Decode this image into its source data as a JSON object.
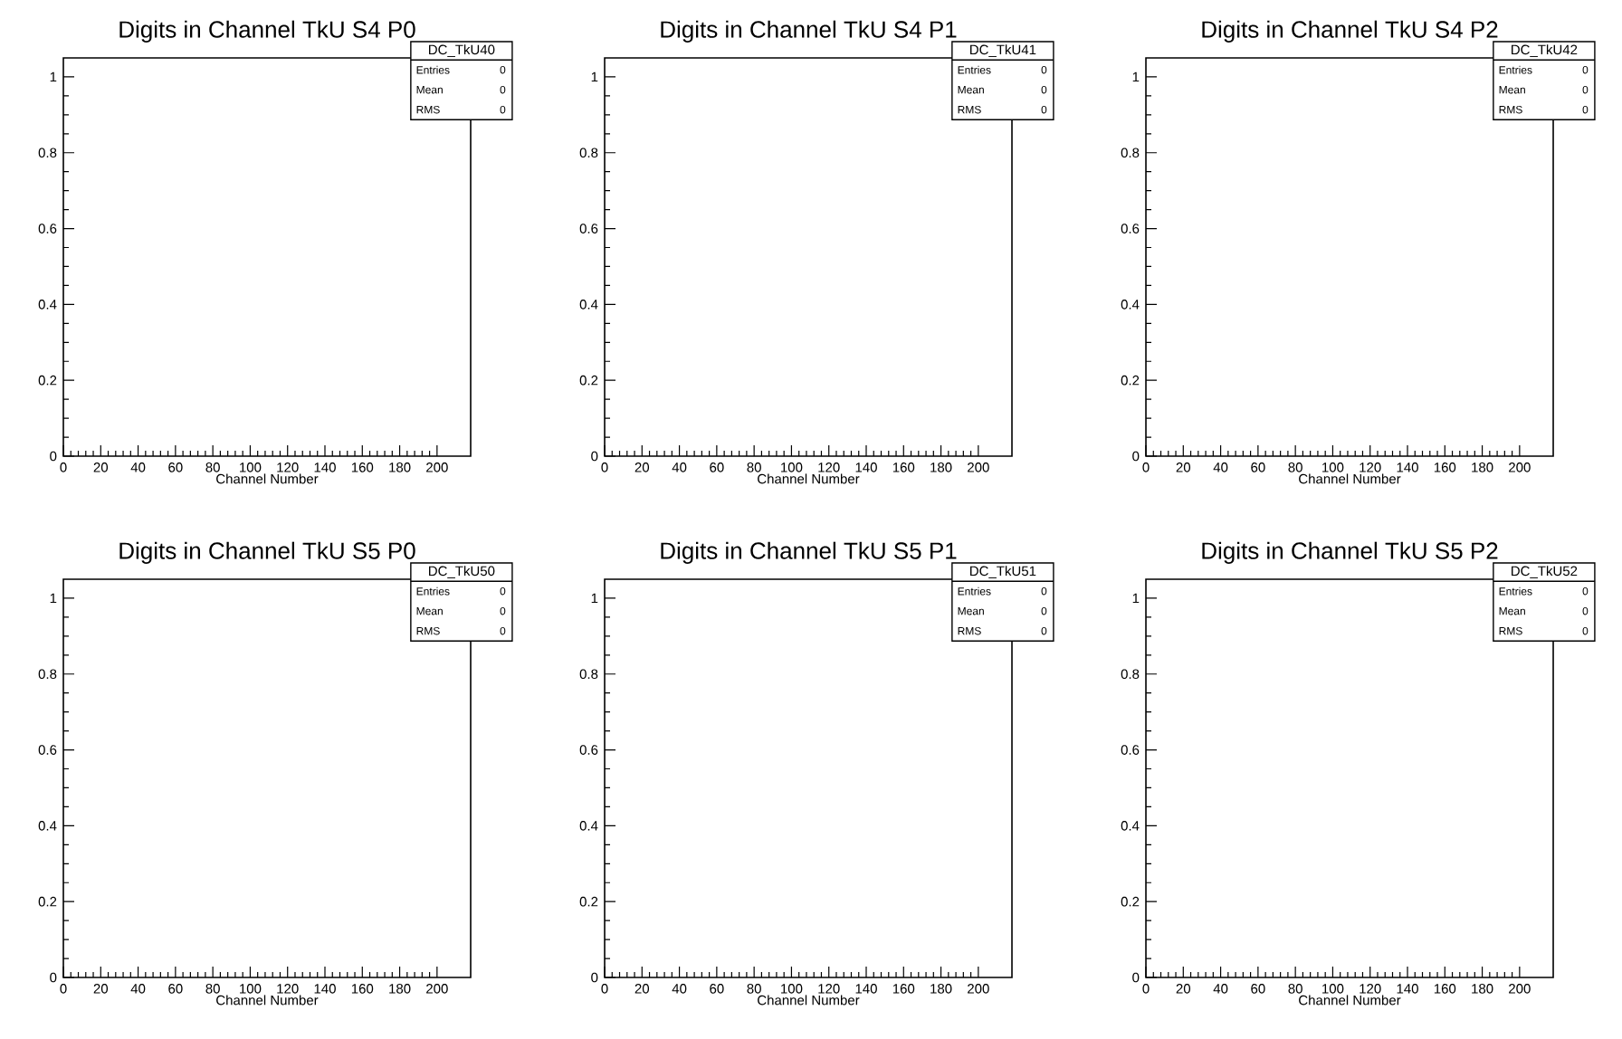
{
  "chart_data": [
    {
      "type": "histogram",
      "title": "Digits in Channel TkU S4 P0",
      "xlabel": "Channel Number",
      "xlim": [
        0,
        218
      ],
      "ylim": [
        0,
        1.05
      ],
      "xticks": [
        0,
        20,
        40,
        60,
        80,
        100,
        120,
        140,
        160,
        180,
        200
      ],
      "yticks": [
        0,
        0.2,
        0.4,
        0.6,
        0.8,
        1
      ],
      "annotations": [
        "DC_TkU40",
        "Entries",
        "0",
        "Mean",
        "0",
        "RMS",
        "0"
      ]
    },
    {
      "type": "histogram",
      "title": "Digits in Channel TkU S4 P1",
      "xlabel": "Channel Number",
      "xlim": [
        0,
        218
      ],
      "ylim": [
        0,
        1.05
      ],
      "xticks": [
        0,
        20,
        40,
        60,
        80,
        100,
        120,
        140,
        160,
        180,
        200
      ],
      "yticks": [
        0,
        0.2,
        0.4,
        0.6,
        0.8,
        1
      ],
      "annotations": [
        "DC_TkU41",
        "Entries",
        "0",
        "Mean",
        "0",
        "RMS",
        "0"
      ]
    },
    {
      "type": "histogram",
      "title": "Digits in Channel TkU S4 P2",
      "xlabel": "Channel Number",
      "xlim": [
        0,
        218
      ],
      "ylim": [
        0,
        1.05
      ],
      "xticks": [
        0,
        20,
        40,
        60,
        80,
        100,
        120,
        140,
        160,
        180,
        200
      ],
      "yticks": [
        0,
        0.2,
        0.4,
        0.6,
        0.8,
        1
      ],
      "annotations": [
        "DC_TkU42",
        "Entries",
        "0",
        "Mean",
        "0",
        "RMS",
        "0"
      ]
    },
    {
      "type": "histogram",
      "title": "Digits in Channel TkU S5 P0",
      "xlabel": "Channel Number",
      "xlim": [
        0,
        218
      ],
      "ylim": [
        0,
        1.05
      ],
      "xticks": [
        0,
        20,
        40,
        60,
        80,
        100,
        120,
        140,
        160,
        180,
        200
      ],
      "yticks": [
        0,
        0.2,
        0.4,
        0.6,
        0.8,
        1
      ],
      "annotations": [
        "DC_TkU50",
        "Entries",
        "0",
        "Mean",
        "0",
        "RMS",
        "0"
      ]
    },
    {
      "type": "histogram",
      "title": "Digits in Channel TkU S5 P1",
      "xlabel": "Channel Number",
      "xlim": [
        0,
        218
      ],
      "ylim": [
        0,
        1.05
      ],
      "xticks": [
        0,
        20,
        40,
        60,
        80,
        100,
        120,
        140,
        160,
        180,
        200
      ],
      "yticks": [
        0,
        0.2,
        0.4,
        0.6,
        0.8,
        1
      ],
      "annotations": [
        "DC_TkU51",
        "Entries",
        "0",
        "Mean",
        "0",
        "RMS",
        "0"
      ]
    },
    {
      "type": "histogram",
      "title": "Digits in Channel TkU S5 P2",
      "xlabel": "Channel Number",
      "xlim": [
        0,
        218
      ],
      "ylim": [
        0,
        1.05
      ],
      "xticks": [
        0,
        20,
        40,
        60,
        80,
        100,
        120,
        140,
        160,
        180,
        200
      ],
      "yticks": [
        0,
        0.2,
        0.4,
        0.6,
        0.8,
        1
      ],
      "annotations": [
        "DC_TkU52",
        "Entries",
        "0",
        "Mean",
        "0",
        "RMS",
        "0"
      ]
    }
  ]
}
